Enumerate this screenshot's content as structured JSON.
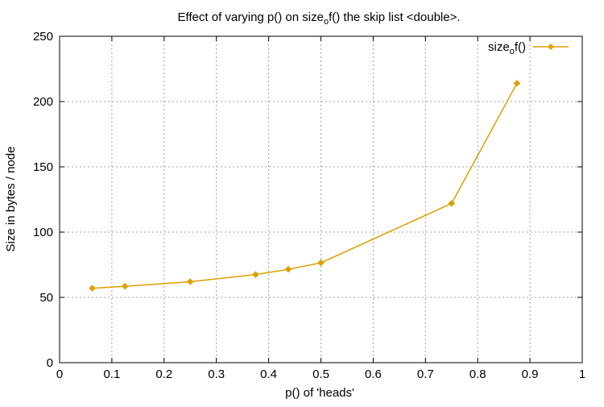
{
  "chart_data": {
    "type": "line",
    "title_parts": [
      "Effect of varying p() on size",
      "o",
      "f() the skip list <double>."
    ],
    "xlabel": "p() of 'heads'",
    "ylabel": "Size in bytes / node",
    "xlim": [
      0,
      1
    ],
    "ylim": [
      0,
      250
    ],
    "x_ticks": [
      0,
      0.1,
      0.2,
      0.3,
      0.4,
      0.5,
      0.6,
      0.7,
      0.8,
      0.9,
      1
    ],
    "x_tick_labels": [
      "0",
      "0.1",
      "0.2",
      "0.3",
      "0.4",
      "0.5",
      "0.6",
      "0.7",
      "0.8",
      "0.9",
      "1"
    ],
    "y_ticks": [
      0,
      50,
      100,
      150,
      200,
      250
    ],
    "y_tick_labels": [
      "0",
      "50",
      "100",
      "150",
      "200",
      "250"
    ],
    "grid": true,
    "legend_position": "top-right",
    "series": [
      {
        "name_parts": [
          "size",
          "o",
          "f()"
        ],
        "color": "#dda000",
        "marker": "diamond",
        "x": [
          0.0625,
          0.125,
          0.25,
          0.375,
          0.4375,
          0.5,
          0.75,
          0.875
        ],
        "y": [
          57,
          58.5,
          62,
          67.5,
          71.5,
          76.5,
          122,
          214
        ]
      }
    ]
  }
}
